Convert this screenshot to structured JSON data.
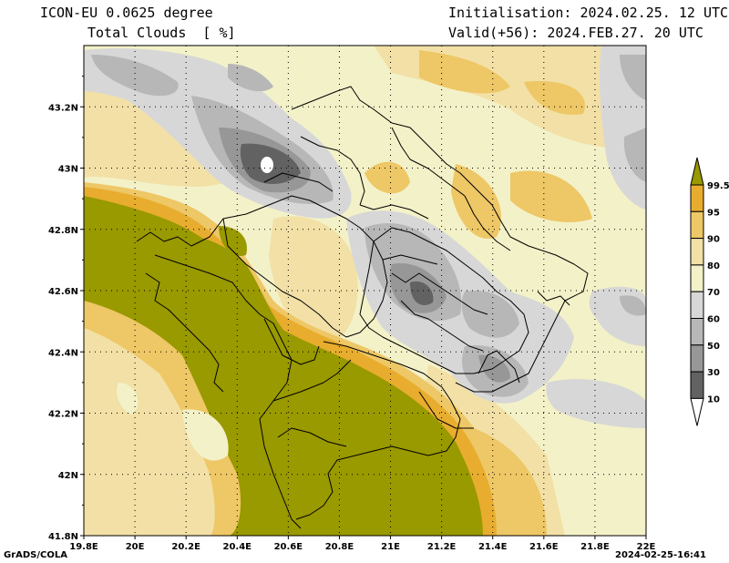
{
  "header": {
    "model": "ICON-EU 0.0625 degree",
    "field": "Total Clouds  [ %]",
    "initialisation": "Initialisation: 2024.02.25. 12 UTC",
    "valid": "Valid(+56): 2024.FEB.27. 20 UTC"
  },
  "footer": {
    "left": "GrADS/COLA",
    "right": "2024-02-25-16:41"
  },
  "map": {
    "lon_labels": [
      "19.8E",
      "20E",
      "20.2E",
      "20.4E",
      "20.6E",
      "20.8E",
      "21E",
      "21.2E",
      "21.4E",
      "21.6E",
      "21.8E",
      "22E"
    ],
    "lat_labels": [
      "43.2N",
      "43N",
      "42.8N",
      "42.6N",
      "42.4N",
      "42.2N",
      "42N",
      "41.8N"
    ]
  },
  "colorbar": {
    "labels": [
      "99.5",
      "95",
      "90",
      "80",
      "70",
      "60",
      "50",
      "30",
      "10"
    ],
    "colors": {
      "c99": "#999900",
      "c95": "#e8ad2e",
      "c90": "#eec766",
      "c80": "#f2e0a6",
      "c70": "#f3f1c8",
      "c60": "#d7d7d7",
      "c50": "#b7b7b7",
      "c30": "#979797",
      "c10": "#626262",
      "c0": "#ffffff"
    }
  }
}
